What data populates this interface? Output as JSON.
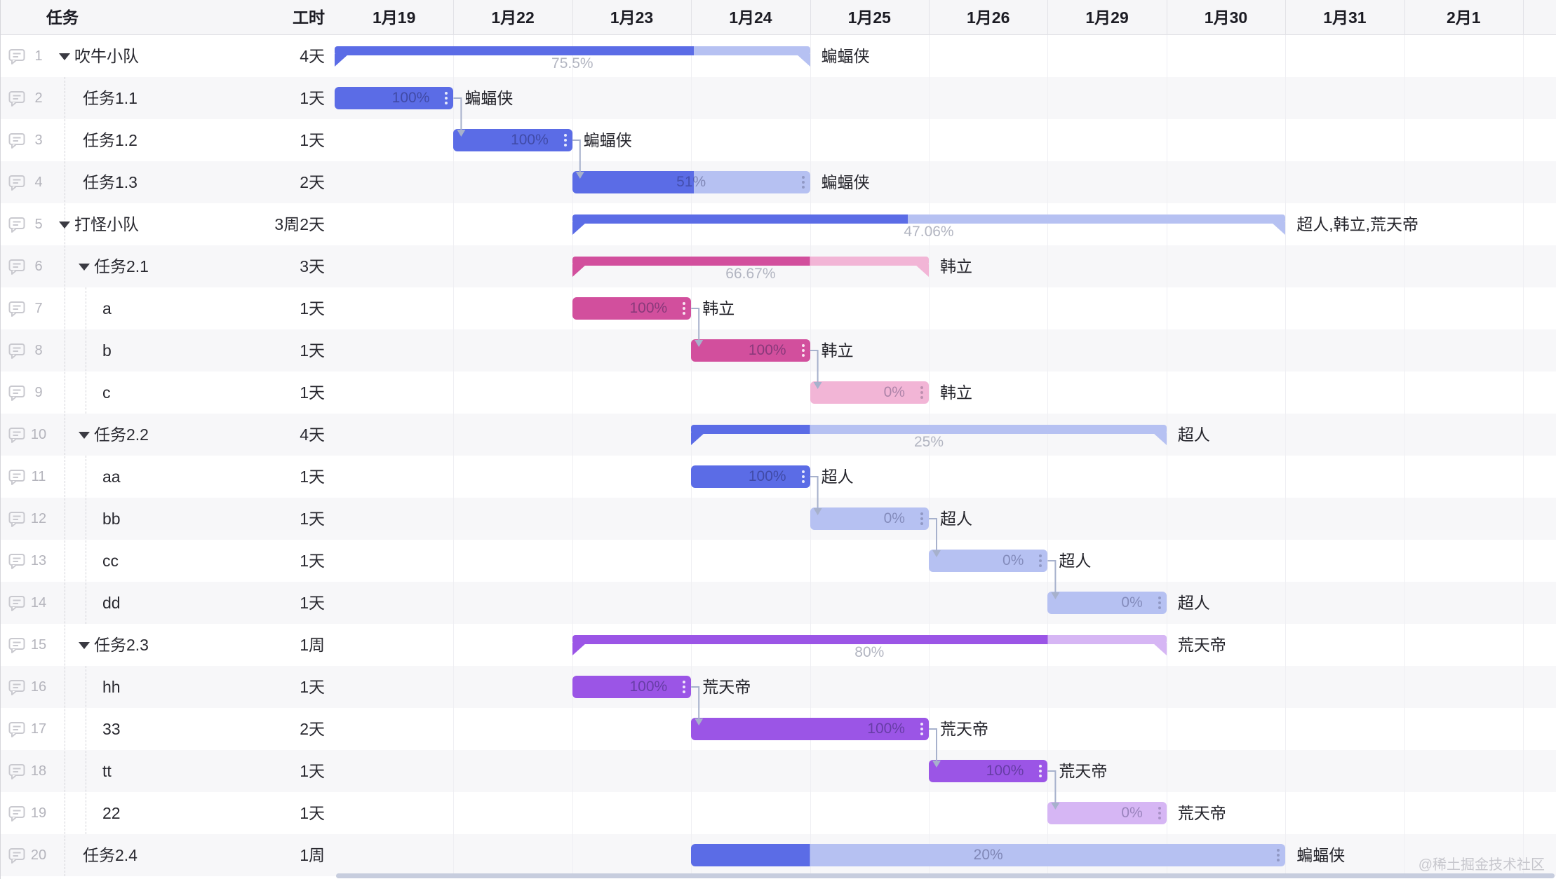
{
  "header": {
    "task_col": "任务",
    "effort_col": "工时",
    "dates": [
      "1月19",
      "1月22",
      "1月23",
      "1月24",
      "1月25",
      "1月26",
      "1月29",
      "1月30",
      "1月31",
      "2月1"
    ]
  },
  "colors": {
    "blue": "#5b6ce6",
    "blue_light": "#b6c1f2",
    "rose": "#d24f9d",
    "rose_light": "#f2b5d6",
    "purple": "#9b55e6",
    "purple_light": "#d6b6f4",
    "connector": "#a7b1cc",
    "stripe": "#f7f7f9"
  },
  "tasks": [
    {
      "num": "1",
      "name": "吹牛小队",
      "effort": "4天",
      "level": 0,
      "has_children": true,
      "bar": {
        "kind": "summary",
        "color": "blue",
        "day": 0,
        "days": 4,
        "percent": 75.5,
        "percent_label": "75.5%",
        "assignee": "蝙蝠侠"
      }
    },
    {
      "num": "2",
      "name": "任务1.1",
      "effort": "1天",
      "level": 1,
      "has_children": false,
      "bar": {
        "kind": "task",
        "color": "blue",
        "day": 0,
        "days": 1,
        "percent": 100,
        "percent_label": "100%",
        "assignee": "蝙蝠侠"
      }
    },
    {
      "num": "3",
      "name": "任务1.2",
      "effort": "1天",
      "level": 1,
      "has_children": false,
      "bar": {
        "kind": "task",
        "color": "blue",
        "day": 1,
        "days": 1,
        "percent": 100,
        "percent_label": "100%",
        "assignee": "蝙蝠侠"
      }
    },
    {
      "num": "4",
      "name": "任务1.3",
      "effort": "2天",
      "level": 1,
      "has_children": false,
      "bar": {
        "kind": "task",
        "color": "blue",
        "day": 2,
        "days": 2,
        "percent": 51,
        "percent_label": "51%",
        "assignee": "蝙蝠侠"
      }
    },
    {
      "num": "5",
      "name": "打怪小队",
      "effort": "3周2天",
      "level": 0,
      "has_children": true,
      "bar": {
        "kind": "summary",
        "color": "blue",
        "day": 2,
        "days": 6,
        "percent": 47.06,
        "percent_label": "47.06%",
        "assignee": "超人,韩立,荒天帝"
      }
    },
    {
      "num": "6",
      "name": "任务2.1",
      "effort": "3天",
      "level": 1,
      "has_children": true,
      "bar": {
        "kind": "summary",
        "color": "rose",
        "day": 2,
        "days": 3,
        "percent": 66.67,
        "percent_label": "66.67%",
        "assignee": "韩立"
      }
    },
    {
      "num": "7",
      "name": "a",
      "effort": "1天",
      "level": 2,
      "has_children": false,
      "bar": {
        "kind": "task",
        "color": "rose",
        "day": 2,
        "days": 1,
        "percent": 100,
        "percent_label": "100%",
        "assignee": "韩立"
      }
    },
    {
      "num": "8",
      "name": "b",
      "effort": "1天",
      "level": 2,
      "has_children": false,
      "bar": {
        "kind": "task",
        "color": "rose",
        "day": 3,
        "days": 1,
        "percent": 100,
        "percent_label": "100%",
        "assignee": "韩立"
      }
    },
    {
      "num": "9",
      "name": "c",
      "effort": "1天",
      "level": 2,
      "has_children": false,
      "bar": {
        "kind": "task",
        "color": "rose",
        "day": 4,
        "days": 1,
        "percent": 0,
        "percent_label": "0%",
        "assignee": "韩立"
      }
    },
    {
      "num": "10",
      "name": "任务2.2",
      "effort": "4天",
      "level": 1,
      "has_children": true,
      "bar": {
        "kind": "summary",
        "color": "blue",
        "day": 3,
        "days": 4,
        "percent": 25,
        "percent_label": "25%",
        "assignee": "超人"
      }
    },
    {
      "num": "11",
      "name": "aa",
      "effort": "1天",
      "level": 2,
      "has_children": false,
      "bar": {
        "kind": "task",
        "color": "blue",
        "day": 3,
        "days": 1,
        "percent": 100,
        "percent_label": "100%",
        "assignee": "超人"
      }
    },
    {
      "num": "12",
      "name": "bb",
      "effort": "1天",
      "level": 2,
      "has_children": false,
      "bar": {
        "kind": "task",
        "color": "blue",
        "day": 4,
        "days": 1,
        "percent": 0,
        "percent_label": "0%",
        "assignee": "超人"
      }
    },
    {
      "num": "13",
      "name": "cc",
      "effort": "1天",
      "level": 2,
      "has_children": false,
      "bar": {
        "kind": "task",
        "color": "blue",
        "day": 5,
        "days": 1,
        "percent": 0,
        "percent_label": "0%",
        "assignee": "超人"
      }
    },
    {
      "num": "14",
      "name": "dd",
      "effort": "1天",
      "level": 2,
      "has_children": false,
      "bar": {
        "kind": "task",
        "color": "blue",
        "day": 6,
        "days": 1,
        "percent": 0,
        "percent_label": "0%",
        "assignee": "超人"
      }
    },
    {
      "num": "15",
      "name": "任务2.3",
      "effort": "1周",
      "level": 1,
      "has_children": true,
      "bar": {
        "kind": "summary",
        "color": "purple",
        "day": 2,
        "days": 5,
        "percent": 80,
        "percent_label": "80%",
        "assignee": "荒天帝"
      }
    },
    {
      "num": "16",
      "name": "hh",
      "effort": "1天",
      "level": 2,
      "has_children": false,
      "bar": {
        "kind": "task",
        "color": "purple",
        "day": 2,
        "days": 1,
        "percent": 100,
        "percent_label": "100%",
        "assignee": "荒天帝"
      }
    },
    {
      "num": "17",
      "name": "33",
      "effort": "2天",
      "level": 2,
      "has_children": false,
      "bar": {
        "kind": "task",
        "color": "purple",
        "day": 3,
        "days": 2,
        "percent": 100,
        "percent_label": "100%",
        "assignee": "荒天帝"
      }
    },
    {
      "num": "18",
      "name": "tt",
      "effort": "1天",
      "level": 2,
      "has_children": false,
      "bar": {
        "kind": "task",
        "color": "purple",
        "day": 5,
        "days": 1,
        "percent": 100,
        "percent_label": "100%",
        "assignee": "荒天帝"
      }
    },
    {
      "num": "19",
      "name": "22",
      "effort": "1天",
      "level": 2,
      "has_children": false,
      "bar": {
        "kind": "task",
        "color": "purple",
        "day": 6,
        "days": 1,
        "percent": 0,
        "percent_label": "0%",
        "assignee": "荒天帝"
      }
    },
    {
      "num": "20",
      "name": "任务2.4",
      "effort": "1周",
      "level": 1,
      "has_children": false,
      "bar": {
        "kind": "task",
        "color": "blue",
        "day": 3,
        "days": 5,
        "percent": 20,
        "percent_label": "20%",
        "assignee": "蝙蝠侠"
      }
    }
  ],
  "connectors": [
    {
      "from": 2,
      "to": 3
    },
    {
      "from": 3,
      "to": 4
    },
    {
      "from": 7,
      "to": 8
    },
    {
      "from": 8,
      "to": 9
    },
    {
      "from": 11,
      "to": 12
    },
    {
      "from": 12,
      "to": 13
    },
    {
      "from": 13,
      "to": 14
    },
    {
      "from": 16,
      "to": 17
    },
    {
      "from": 17,
      "to": 18
    },
    {
      "from": 18,
      "to": 19
    }
  ],
  "watermark": "@稀土掘金技术社区"
}
